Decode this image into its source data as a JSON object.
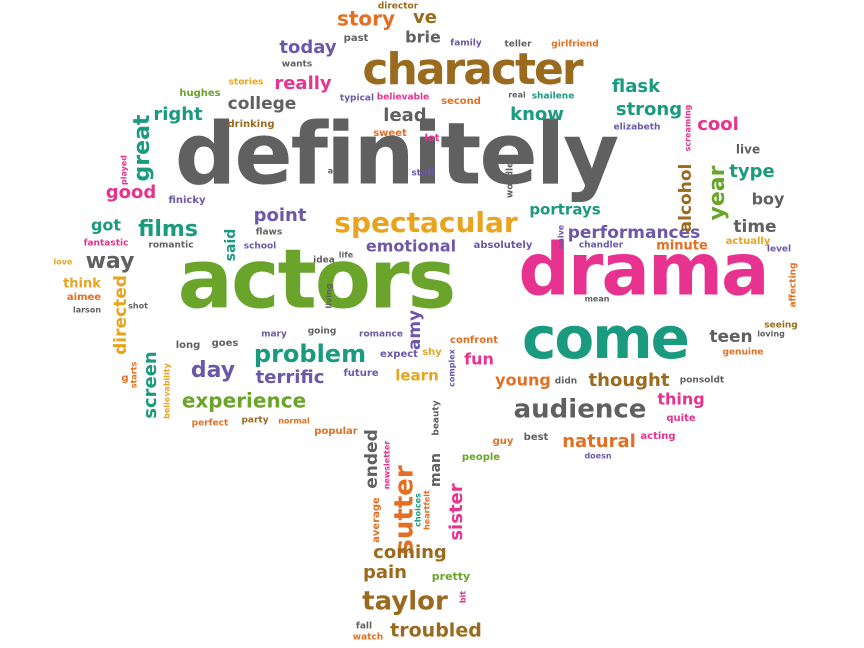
{
  "colors": {
    "gray": "#606060",
    "green": "#6aa42a",
    "pink": "#e8328f",
    "teal": "#1a9a7e",
    "gold": "#e8a41e",
    "purple": "#6b58a8",
    "orange": "#e46f22",
    "brown": "#9a6a1e"
  },
  "words": [
    {
      "id": "definitely",
      "text": "definitely",
      "color": "gray"
    },
    {
      "id": "actors",
      "text": "actors",
      "color": "green"
    },
    {
      "id": "drama",
      "text": "drama",
      "color": "pink"
    },
    {
      "id": "come",
      "text": "come",
      "color": "teal"
    },
    {
      "id": "character",
      "text": "character",
      "color": "brown"
    },
    {
      "id": "spectacular",
      "text": "spectacular",
      "color": "gold"
    },
    {
      "id": "audience",
      "text": "audience",
      "color": "gray"
    },
    {
      "id": "problem",
      "text": "problem",
      "color": "teal"
    },
    {
      "id": "experience",
      "text": "experience",
      "color": "green"
    },
    {
      "id": "performances",
      "text": "performances",
      "color": "purple"
    },
    {
      "id": "taylor",
      "text": "taylor",
      "color": "brown"
    },
    {
      "id": "sutter",
      "text": "sutter",
      "color": "orange"
    },
    {
      "id": "story",
      "text": "story",
      "color": "orange"
    },
    {
      "id": "ve",
      "text": "ve",
      "color": "brown"
    },
    {
      "id": "director",
      "text": "director",
      "color": "brown"
    },
    {
      "id": "brie",
      "text": "brie",
      "color": "gray"
    },
    {
      "id": "today",
      "text": "today",
      "color": "purple"
    },
    {
      "id": "wants",
      "text": "wants",
      "color": "gray"
    },
    {
      "id": "past",
      "text": "past",
      "color": "gray"
    },
    {
      "id": "family",
      "text": "family",
      "color": "purple"
    },
    {
      "id": "teller",
      "text": "teller",
      "color": "gray"
    },
    {
      "id": "girlfriend",
      "text": "girlfriend",
      "color": "orange"
    },
    {
      "id": "really",
      "text": "really",
      "color": "pink"
    },
    {
      "id": "stories",
      "text": "stories",
      "color": "gold"
    },
    {
      "id": "hughes",
      "text": "hughes",
      "color": "green"
    },
    {
      "id": "flask",
      "text": "flask",
      "color": "teal"
    },
    {
      "id": "college",
      "text": "college",
      "color": "gray"
    },
    {
      "id": "lead",
      "text": "lead",
      "color": "gray"
    },
    {
      "id": "typical",
      "text": "typical",
      "color": "purple"
    },
    {
      "id": "believable",
      "text": "believable",
      "color": "pink"
    },
    {
      "id": "second",
      "text": "second",
      "color": "orange"
    },
    {
      "id": "real",
      "text": "real",
      "color": "gray"
    },
    {
      "id": "shailene",
      "text": "shailene",
      "color": "teal"
    },
    {
      "id": "know",
      "text": "know",
      "color": "teal"
    },
    {
      "id": "strong",
      "text": "strong",
      "color": "teal"
    },
    {
      "id": "right",
      "text": "right",
      "color": "teal"
    },
    {
      "id": "drinking",
      "text": "drinking",
      "color": "brown"
    },
    {
      "id": "sweet",
      "text": "sweet",
      "color": "orange"
    },
    {
      "id": "lot",
      "text": "lot",
      "color": "pink"
    },
    {
      "id": "elizabeth",
      "text": "elizabeth",
      "color": "purple"
    },
    {
      "id": "screaming",
      "text": "screaming",
      "color": "pink"
    },
    {
      "id": "cool",
      "text": "cool",
      "color": "pink"
    },
    {
      "id": "live",
      "text": "live",
      "color": "gray"
    },
    {
      "id": "great",
      "text": "great",
      "color": "teal"
    },
    {
      "id": "played",
      "text": "played",
      "color": "pink"
    },
    {
      "id": "good",
      "text": "good",
      "color": "pink"
    },
    {
      "id": "finicky",
      "text": "finicky",
      "color": "purple"
    },
    {
      "id": "age",
      "text": "age",
      "color": "gray"
    },
    {
      "id": "isn",
      "text": "isn",
      "color": "gray"
    },
    {
      "id": "stuff",
      "text": "stuff",
      "color": "purple"
    },
    {
      "id": "woodley",
      "text": "woodley",
      "color": "gray"
    },
    {
      "id": "alcohol",
      "text": "alcohol",
      "color": "brown"
    },
    {
      "id": "year",
      "text": "year",
      "color": "green"
    },
    {
      "id": "type",
      "text": "type",
      "color": "teal"
    },
    {
      "id": "boy",
      "text": "boy",
      "color": "gray"
    },
    {
      "id": "got",
      "text": "got",
      "color": "teal"
    },
    {
      "id": "films",
      "text": "films",
      "color": "teal"
    },
    {
      "id": "point",
      "text": "point",
      "color": "purple"
    },
    {
      "id": "flaws",
      "text": "flaws",
      "color": "gray"
    },
    {
      "id": "portrays",
      "text": "portrays",
      "color": "teal"
    },
    {
      "id": "time",
      "text": "time",
      "color": "gray"
    },
    {
      "id": "fantastic",
      "text": "fantastic",
      "color": "pink"
    },
    {
      "id": "romantic",
      "text": "romantic",
      "color": "gray"
    },
    {
      "id": "said",
      "text": "said",
      "color": "teal"
    },
    {
      "id": "school",
      "text": "school",
      "color": "purple"
    },
    {
      "id": "emotional",
      "text": "emotional",
      "color": "purple"
    },
    {
      "id": "absolutely",
      "text": "absolutely",
      "color": "purple"
    },
    {
      "id": "naive",
      "text": "naive",
      "color": "purple"
    },
    {
      "id": "chandler",
      "text": "chandler",
      "color": "purple"
    },
    {
      "id": "minute",
      "text": "minute",
      "color": "orange"
    },
    {
      "id": "actually",
      "text": "actually",
      "color": "gold"
    },
    {
      "id": "level",
      "text": "level",
      "color": "purple"
    },
    {
      "id": "love",
      "text": "love",
      "color": "gold"
    },
    {
      "id": "way",
      "text": "way",
      "color": "gray"
    },
    {
      "id": "idea",
      "text": "idea",
      "color": "gray"
    },
    {
      "id": "life",
      "text": "life",
      "color": "gray"
    },
    {
      "id": "affecting",
      "text": "affecting",
      "color": "orange"
    },
    {
      "id": "think",
      "text": "think",
      "color": "gold"
    },
    {
      "id": "aimee",
      "text": "aimee",
      "color": "orange"
    },
    {
      "id": "larson",
      "text": "larson",
      "color": "gray"
    },
    {
      "id": "directed",
      "text": "directed",
      "color": "gold"
    },
    {
      "id": "shot",
      "text": "shot",
      "color": "gray"
    },
    {
      "id": "living",
      "text": "living",
      "color": "gray"
    },
    {
      "id": "mean",
      "text": "mean",
      "color": "gray"
    },
    {
      "id": "seeing",
      "text": "seeing",
      "color": "brown"
    },
    {
      "id": "loving",
      "text": "loving",
      "color": "gray"
    },
    {
      "id": "amy",
      "text": "amy",
      "color": "purple"
    },
    {
      "id": "mary",
      "text": "mary",
      "color": "purple"
    },
    {
      "id": "going",
      "text": "going",
      "color": "gray"
    },
    {
      "id": "romance",
      "text": "romance",
      "color": "purple"
    },
    {
      "id": "confront",
      "text": "confront",
      "color": "orange"
    },
    {
      "id": "long",
      "text": "long",
      "color": "gray"
    },
    {
      "id": "goes",
      "text": "goes",
      "color": "gray"
    },
    {
      "id": "teen",
      "text": "teen",
      "color": "gray"
    },
    {
      "id": "genuine",
      "text": "genuine",
      "color": "orange"
    },
    {
      "id": "screen",
      "text": "screen",
      "color": "teal"
    },
    {
      "id": "day",
      "text": "day",
      "color": "purple"
    },
    {
      "id": "expect",
      "text": "expect",
      "color": "purple"
    },
    {
      "id": "shy",
      "text": "shy",
      "color": "gold"
    },
    {
      "id": "fun",
      "text": "fun",
      "color": "pink"
    },
    {
      "id": "complex",
      "text": "complex",
      "color": "purple"
    },
    {
      "id": "starts",
      "text": "starts",
      "color": "orange"
    },
    {
      "id": "believability",
      "text": "believability",
      "color": "gold"
    },
    {
      "id": "g",
      "text": "g",
      "color": "orange"
    },
    {
      "id": "terrific",
      "text": "terrific",
      "color": "purple"
    },
    {
      "id": "future",
      "text": "future",
      "color": "purple"
    },
    {
      "id": "learn",
      "text": "learn",
      "color": "gold"
    },
    {
      "id": "young",
      "text": "young",
      "color": "orange"
    },
    {
      "id": "didn",
      "text": "didn",
      "color": "gray"
    },
    {
      "id": "thought",
      "text": "thought",
      "color": "brown"
    },
    {
      "id": "ponsoldt",
      "text": "ponsoldt",
      "color": "gray"
    },
    {
      "id": "thing",
      "text": "thing",
      "color": "pink"
    },
    {
      "id": "quite",
      "text": "quite",
      "color": "pink"
    },
    {
      "id": "perfect",
      "text": "perfect",
      "color": "orange"
    },
    {
      "id": "party",
      "text": "party",
      "color": "brown"
    },
    {
      "id": "normal",
      "text": "normal",
      "color": "orange"
    },
    {
      "id": "popular",
      "text": "popular",
      "color": "orange"
    },
    {
      "id": "beauty",
      "text": "beauty",
      "color": "gray"
    },
    {
      "id": "acting",
      "text": "acting",
      "color": "pink"
    },
    {
      "id": "natural",
      "text": "natural",
      "color": "orange"
    },
    {
      "id": "doesn",
      "text": "doesn",
      "color": "purple"
    },
    {
      "id": "guy",
      "text": "guy",
      "color": "orange"
    },
    {
      "id": "best",
      "text": "best",
      "color": "gray"
    },
    {
      "id": "people",
      "text": "people",
      "color": "green"
    },
    {
      "id": "ended",
      "text": "ended",
      "color": "gray"
    },
    {
      "id": "average",
      "text": "average",
      "color": "orange"
    },
    {
      "id": "heartfelt",
      "text": "heartfelt",
      "color": "orange"
    },
    {
      "id": "choices",
      "text": "choices",
      "color": "teal"
    },
    {
      "id": "newsletter",
      "text": "newsletter",
      "color": "pink"
    },
    {
      "id": "man",
      "text": "man",
      "color": "gray"
    },
    {
      "id": "sister",
      "text": "sister",
      "color": "pink"
    },
    {
      "id": "coming",
      "text": "coming",
      "color": "brown"
    },
    {
      "id": "pain",
      "text": "pain",
      "color": "brown"
    },
    {
      "id": "pretty",
      "text": "pretty",
      "color": "green"
    },
    {
      "id": "bit",
      "text": "bit",
      "color": "pink"
    },
    {
      "id": "fall",
      "text": "fall",
      "color": "gray"
    },
    {
      "id": "watch",
      "text": "watch",
      "color": "orange"
    },
    {
      "id": "troubled",
      "text": "troubled",
      "color": "brown"
    }
  ]
}
